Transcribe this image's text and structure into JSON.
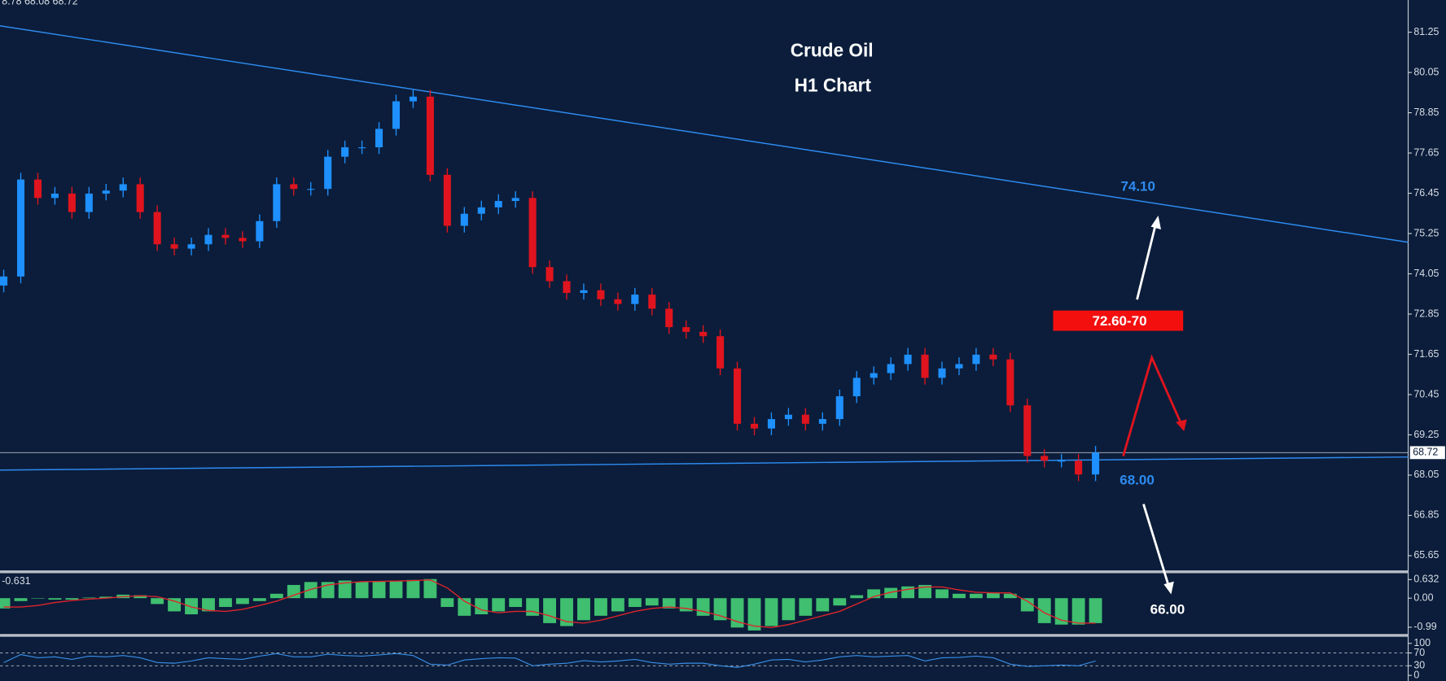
{
  "chart_data": {
    "type": "candlestick",
    "title": "Crude Oil",
    "subtitle": "H1 Chart",
    "header": "8.78 68.08 68.72",
    "annotations": [
      "74.10",
      "72.60-70",
      "68.00",
      "66.00"
    ],
    "up_color": "#1e90ff",
    "down_color": "#e0141e",
    "ylim": [
      65.21,
      82.21
    ],
    "yticks": [
      81.25,
      80.05,
      78.85,
      77.65,
      76.45,
      75.25,
      74.05,
      72.85,
      71.65,
      70.45,
      69.25,
      68.05,
      66.85,
      65.65
    ],
    "last_price": 68.72,
    "trendlines": [
      {
        "start": 81.44,
        "end": 74.99,
        "color": "#2e8bf0"
      },
      {
        "start": 68.2,
        "end": 68.59,
        "color": "#2e8bf0"
      }
    ],
    "open": [
      73.7,
      73.97,
      76.86,
      76.31,
      76.44,
      75.89,
      76.44,
      76.53,
      76.72,
      75.89,
      74.93,
      74.8,
      74.93,
      75.21,
      75.12,
      75.02,
      75.62,
      76.72,
      76.58,
      76.58,
      77.54,
      77.82,
      77.82,
      78.37,
      79.19,
      79.33,
      77.0,
      75.48,
      75.84,
      76.03,
      76.22,
      76.31,
      74.25,
      73.83,
      73.48,
      73.56,
      73.29,
      73.15,
      73.43,
      73.01,
      72.46,
      72.32,
      72.19,
      71.23,
      69.58,
      69.44,
      69.72,
      69.85,
      69.58,
      69.72,
      70.4,
      70.95,
      71.09,
      71.36,
      71.64,
      70.95,
      71.23,
      71.36,
      71.64,
      71.5,
      70.13,
      68.62,
      68.48,
      68.48,
      68.07
    ],
    "high": [
      74.17,
      77.06,
      77.06,
      76.64,
      76.64,
      76.64,
      76.73,
      76.92,
      76.92,
      76.09,
      75.13,
      75.13,
      75.41,
      75.41,
      75.32,
      75.82,
      76.92,
      76.92,
      76.78,
      77.74,
      78.02,
      78.02,
      78.57,
      79.39,
      79.53,
      79.53,
      77.2,
      76.04,
      76.23,
      76.42,
      76.51,
      76.51,
      74.45,
      74.03,
      73.76,
      73.76,
      73.49,
      73.63,
      73.63,
      73.21,
      72.66,
      72.52,
      72.39,
      71.43,
      69.78,
      69.92,
      70.05,
      70.05,
      69.92,
      70.6,
      71.15,
      71.29,
      71.56,
      71.84,
      71.84,
      71.43,
      71.56,
      71.84,
      71.84,
      71.7,
      70.33,
      68.82,
      68.68,
      68.68,
      68.92
    ],
    "low": [
      73.5,
      73.77,
      76.11,
      76.11,
      75.69,
      75.69,
      76.24,
      76.33,
      75.69,
      74.73,
      74.6,
      74.6,
      74.73,
      74.92,
      74.82,
      74.82,
      75.42,
      76.38,
      76.38,
      76.38,
      77.34,
      77.62,
      77.62,
      78.17,
      78.99,
      76.8,
      75.28,
      75.28,
      75.64,
      75.83,
      76.02,
      74.05,
      73.63,
      73.28,
      73.28,
      73.09,
      72.95,
      72.95,
      72.81,
      72.26,
      72.12,
      71.99,
      71.03,
      69.38,
      69.24,
      69.24,
      69.52,
      69.38,
      69.38,
      69.52,
      70.2,
      70.75,
      70.89,
      71.16,
      70.75,
      70.75,
      71.03,
      71.16,
      71.3,
      69.93,
      68.42,
      68.28,
      68.28,
      67.87,
      67.87
    ],
    "close": [
      73.97,
      76.86,
      76.31,
      76.44,
      75.89,
      76.44,
      76.53,
      76.72,
      75.89,
      74.93,
      74.8,
      74.93,
      75.21,
      75.12,
      75.02,
      75.62,
      76.72,
      76.58,
      76.58,
      77.54,
      77.82,
      77.82,
      78.37,
      79.19,
      79.33,
      77.0,
      75.48,
      75.84,
      76.03,
      76.22,
      76.31,
      74.25,
      73.83,
      73.48,
      73.56,
      73.29,
      73.15,
      73.43,
      73.01,
      72.46,
      72.32,
      72.19,
      71.23,
      69.58,
      69.44,
      69.72,
      69.85,
      69.58,
      69.72,
      70.4,
      70.95,
      71.09,
      71.36,
      71.64,
      70.95,
      71.23,
      71.36,
      71.64,
      71.5,
      70.13,
      68.62,
      68.48,
      68.48,
      68.07,
      68.72
    ],
    "indicators": {
      "macd": {
        "header_value": -0.631,
        "ylim": [
          -1.22,
          0.85
        ],
        "yticks": [
          0.632,
          {
            "value": 0,
            "label": "0.00"
          },
          -0.99
        ],
        "histogram_color": "#3fbf6f",
        "signal_color": "#e0242a",
        "histogram": [
          -0.35,
          -0.1,
          0.0,
          -0.05,
          -0.05,
          0.02,
          0.05,
          0.12,
          0.1,
          -0.2,
          -0.45,
          -0.55,
          -0.45,
          -0.3,
          -0.2,
          -0.1,
          0.15,
          0.45,
          0.55,
          0.55,
          0.6,
          0.55,
          0.58,
          0.6,
          0.62,
          0.65,
          -0.3,
          -0.6,
          -0.55,
          -0.45,
          -0.3,
          -0.6,
          -0.85,
          -0.95,
          -0.75,
          -0.6,
          -0.45,
          -0.3,
          -0.25,
          -0.35,
          -0.45,
          -0.6,
          -0.75,
          -1.0,
          -1.1,
          -0.95,
          -0.75,
          -0.6,
          -0.45,
          -0.25,
          0.1,
          0.3,
          0.35,
          0.4,
          0.45,
          0.3,
          0.15,
          0.15,
          0.2,
          0.15,
          -0.45,
          -0.85,
          -0.9,
          -0.9,
          -0.85
        ],
        "signal": [
          -0.3,
          -0.3,
          -0.25,
          -0.15,
          -0.08,
          -0.03,
          0.0,
          0.05,
          0.08,
          0.05,
          -0.1,
          -0.3,
          -0.42,
          -0.45,
          -0.38,
          -0.25,
          -0.1,
          0.1,
          0.3,
          0.45,
          0.52,
          0.56,
          0.57,
          0.58,
          0.6,
          0.62,
          0.35,
          -0.1,
          -0.4,
          -0.5,
          -0.45,
          -0.45,
          -0.6,
          -0.8,
          -0.85,
          -0.75,
          -0.6,
          -0.45,
          -0.35,
          -0.3,
          -0.35,
          -0.45,
          -0.6,
          -0.8,
          -0.95,
          -1.0,
          -0.9,
          -0.75,
          -0.6,
          -0.45,
          -0.2,
          0.05,
          0.2,
          0.3,
          0.38,
          0.38,
          0.28,
          0.2,
          0.18,
          0.18,
          -0.1,
          -0.5,
          -0.75,
          -0.85,
          -0.85
        ]
      },
      "rsi": {
        "ylim": [
          -17.6,
          120.6
        ],
        "yticks": [
          100,
          70,
          30,
          0
        ],
        "levels": [
          70,
          30
        ],
        "color": "#3a8ee6",
        "values": [
          40,
          65,
          55,
          58,
          50,
          60,
          58,
          62,
          55,
          40,
          38,
          45,
          55,
          52,
          50,
          60,
          68,
          58,
          58,
          66,
          62,
          60,
          64,
          68,
          62,
          35,
          32,
          48,
          52,
          55,
          54,
          30,
          35,
          38,
          46,
          42,
          45,
          50,
          40,
          35,
          38,
          38,
          30,
          25,
          35,
          48,
          50,
          42,
          48,
          58,
          62,
          58,
          60,
          62,
          45,
          55,
          56,
          60,
          55,
          35,
          28,
          30,
          32,
          30,
          45
        ]
      }
    }
  }
}
